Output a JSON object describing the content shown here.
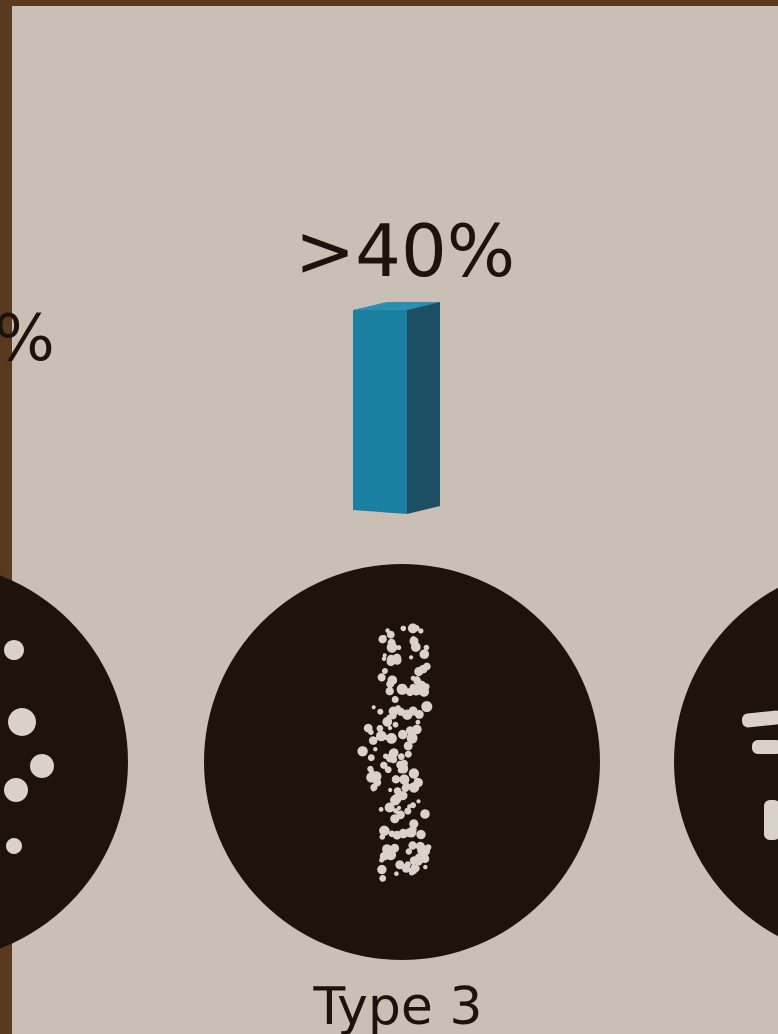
{
  "labels": {
    "left": "%",
    "center": ">40%"
  },
  "caption": "Type 3"
}
